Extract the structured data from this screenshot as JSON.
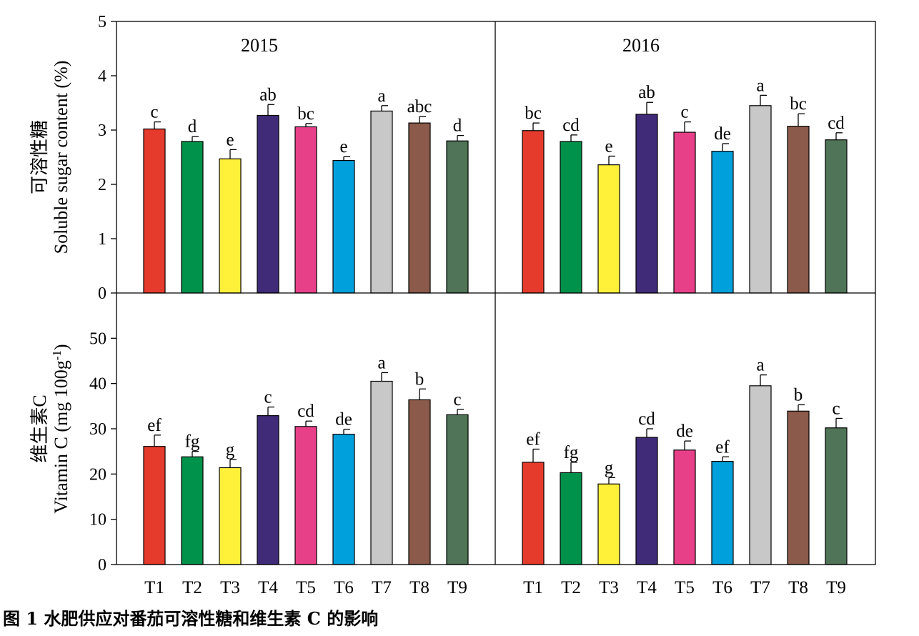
{
  "caption": "图 1 水肥供应对番茄可溶性糖和维生素 C 的影响",
  "chart_data": {
    "type": "bar",
    "categories": [
      "T1",
      "T2",
      "T3",
      "T4",
      "T5",
      "T6",
      "T7",
      "T8",
      "T9"
    ],
    "colors": [
      "#e53b2c",
      "#00914a",
      "#fff03a",
      "#3f2b78",
      "#e84088",
      "#00a0dc",
      "#c8c8c8",
      "#8b5a4a",
      "#4f7457"
    ],
    "rows": [
      {
        "ylabel_cn": "可溶性糖",
        "ylabel_en": "Soluble sugar content (%)",
        "ylim": [
          0,
          5
        ],
        "yticks": [
          0,
          1,
          2,
          3,
          4,
          5
        ],
        "panels": [
          {
            "year": "2015",
            "values": [
              3.02,
              2.79,
              2.47,
              3.27,
              3.06,
              2.44,
              3.35,
              3.13,
              2.8
            ],
            "errors": [
              0.13,
              0.09,
              0.17,
              0.2,
              0.06,
              0.07,
              0.1,
              0.12,
              0.1
            ],
            "letters": [
              "c",
              "d",
              "e",
              "ab",
              "bc",
              "e",
              "a",
              "abc",
              "d"
            ]
          },
          {
            "year": "2016",
            "values": [
              2.99,
              2.79,
              2.36,
              3.29,
              2.96,
              2.61,
              3.45,
              3.07,
              2.82
            ],
            "errors": [
              0.14,
              0.12,
              0.16,
              0.22,
              0.19,
              0.14,
              0.19,
              0.23,
              0.13
            ],
            "letters": [
              "bc",
              "cd",
              "e",
              "ab",
              "c",
              "de",
              "a",
              "bc",
              "cd"
            ]
          }
        ]
      },
      {
        "ylabel_cn": "维生素C",
        "ylabel_en": "Vitamin C (mg 100g",
        "ylabel_sup": "-1",
        "ylabel_close": ")",
        "ylim": [
          0,
          60
        ],
        "yticks": [
          0,
          10,
          20,
          30,
          40,
          50
        ],
        "panels": [
          {
            "year": "",
            "values": [
              26.1,
              23.8,
              21.4,
              32.9,
              30.5,
              28.8,
              40.5,
              36.4,
              33.1
            ],
            "errors": [
              2.5,
              1.2,
              1.8,
              1.9,
              1.2,
              1.1,
              1.9,
              2.4,
              1.2
            ],
            "letters": [
              "ef",
              "fg",
              "g",
              "c",
              "cd",
              "de",
              "a",
              "b",
              "c"
            ]
          },
          {
            "year": "",
            "values": [
              22.6,
              20.3,
              17.8,
              28.1,
              25.3,
              22.8,
              39.5,
              33.9,
              30.2
            ],
            "errors": [
              2.9,
              2.3,
              1.4,
              1.9,
              2.0,
              1.0,
              2.4,
              1.4,
              2.1
            ],
            "letters": [
              "ef",
              "fg",
              "g",
              "cd",
              "de",
              "ef",
              "a",
              "b",
              "c"
            ]
          }
        ]
      }
    ]
  }
}
